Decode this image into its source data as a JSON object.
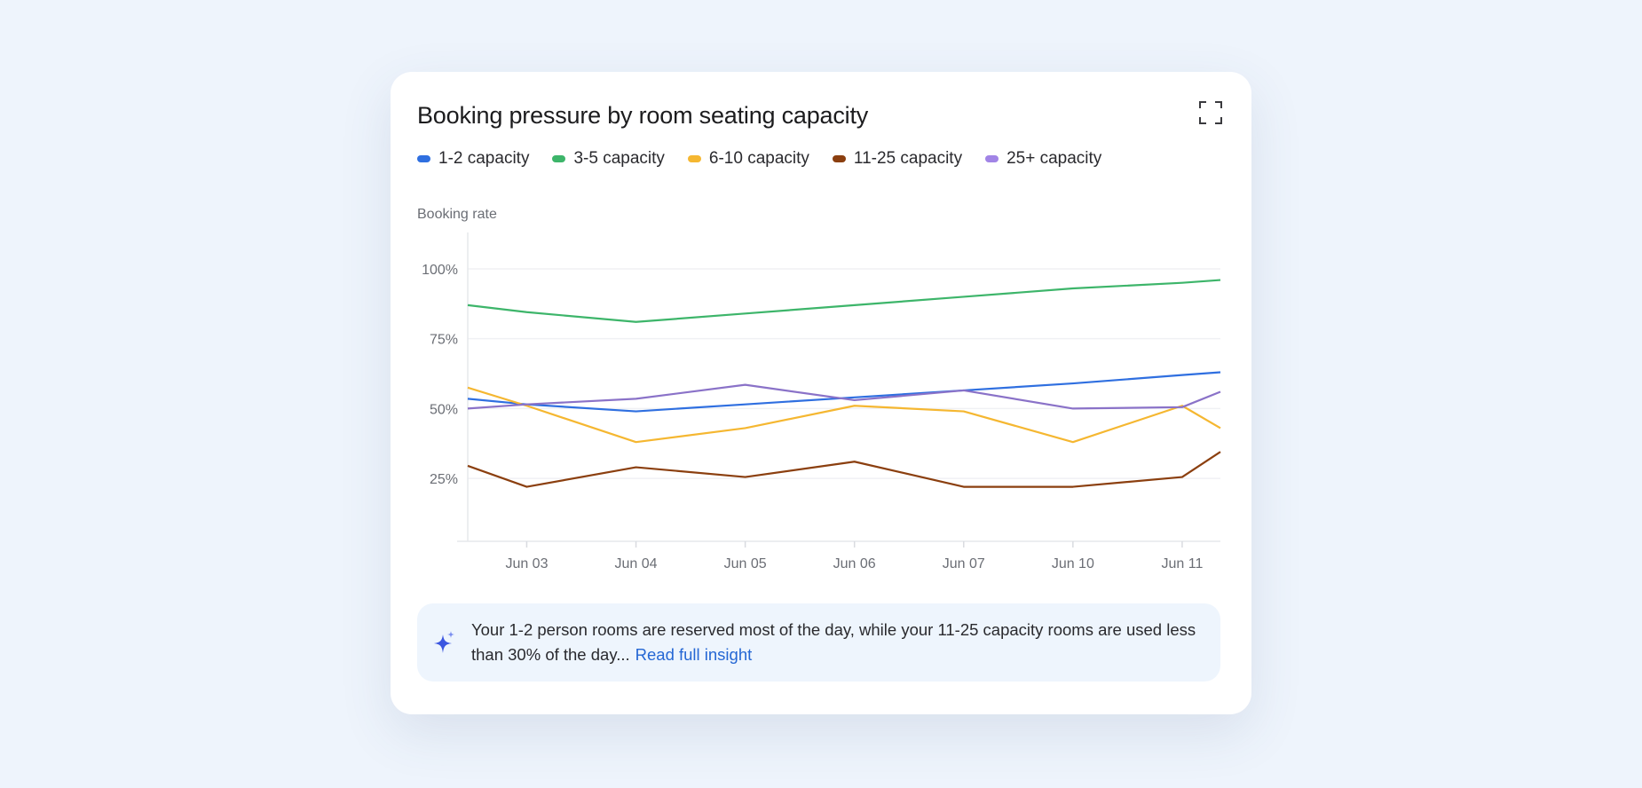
{
  "card": {
    "title": "Booking pressure by room seating capacity",
    "expand_icon": "expand-icon"
  },
  "chart_data": {
    "type": "line",
    "title": "Booking pressure by room seating capacity",
    "xlabel": "",
    "ylabel": "Booking rate",
    "categories": [
      "Jun 03",
      "Jun 04",
      "Jun 05",
      "Jun 06",
      "Jun 07",
      "Jun 10",
      "Jun 11"
    ],
    "x": [
      -0.54,
      0,
      1,
      2,
      3,
      4,
      5,
      6,
      6.35
    ],
    "xlim": [
      -0.54,
      6.35
    ],
    "ylim": [
      2.5,
      113
    ],
    "yticks": [
      25,
      50,
      75,
      100
    ],
    "ytick_labels": [
      "25%",
      "50%",
      "75%",
      "100%"
    ],
    "grid": true,
    "legend": "top-left",
    "series": [
      {
        "name": "1-2 capacity",
        "color": "#2f6fe0",
        "values": [
          53.5,
          51.5,
          49,
          51.5,
          54,
          56.5,
          59,
          62,
          63
        ]
      },
      {
        "name": "3-5 capacity",
        "color": "#3db56a",
        "values": [
          87,
          84.5,
          81,
          84,
          87,
          90,
          93,
          95,
          96
        ]
      },
      {
        "name": "6-10 capacity",
        "color": "#f5b731",
        "values": [
          57.5,
          51,
          38,
          43,
          51,
          49,
          38,
          51,
          43
        ]
      },
      {
        "name": "11-25 capacity",
        "color": "#8b3f0f",
        "values": [
          29.5,
          22,
          29,
          25.5,
          31,
          22,
          22,
          25.5,
          34.5
        ]
      },
      {
        "name": "25+ capacity",
        "color": "#a184e6",
        "line_color": "#8a72c8",
        "values": [
          50,
          51.5,
          53.5,
          58.5,
          53,
          56.5,
          50,
          50.5,
          56
        ]
      }
    ]
  },
  "insight": {
    "icon": "sparkle-icon",
    "text": "Your 1-2 person rooms are reserved most of the day, while your 11-25 capacity rooms are used less than 30% of the day...",
    "link": "Read full insight"
  }
}
